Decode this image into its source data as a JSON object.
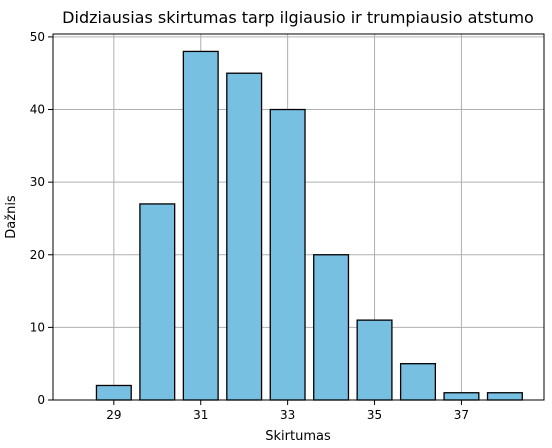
{
  "chart_data": {
    "type": "bar",
    "title": "Didziausias skirtumas tarp ilgiausio ir trumpiausio atstumo",
    "xlabel": "Skirtumas",
    "ylabel": "Dažnis",
    "x": [
      29,
      30,
      31,
      32,
      33,
      34,
      35,
      36,
      37,
      38
    ],
    "values": [
      2,
      27,
      48,
      45,
      40,
      20,
      11,
      5,
      1,
      1
    ],
    "xlim": [
      27.6,
      38.9
    ],
    "ylim": [
      0,
      50.4
    ],
    "xticks": [
      29,
      31,
      33,
      35,
      37
    ],
    "yticks": [
      0,
      10,
      20,
      30,
      40,
      50
    ],
    "grid": true,
    "bar_color": "#77c0e2",
    "edge_color": "#000000"
  }
}
